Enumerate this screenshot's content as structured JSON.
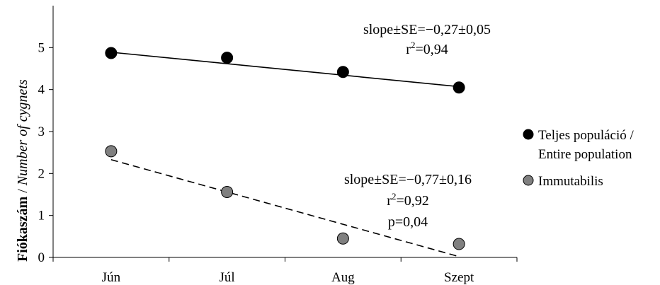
{
  "chart_data": {
    "type": "scatter",
    "categories": [
      "Jún",
      "Júl",
      "Aug",
      "Szept"
    ],
    "ylabel": {
      "bold": "Fiókaszám",
      "separator": " / ",
      "italic": "Number of cygnets"
    },
    "ylim": [
      0,
      6
    ],
    "yticks": [
      "0",
      "1",
      "2",
      "3",
      "4",
      "5"
    ],
    "grid": false,
    "legend_position": "right",
    "series": [
      {
        "name_line1": "Teljes populáció /",
        "name_line2": "Entire population",
        "color": "#000000",
        "values": [
          4.87,
          4.76,
          4.42,
          4.05
        ],
        "trend": {
          "start": 4.89,
          "end": 4.07,
          "style": "solid"
        },
        "annotation": {
          "line1": "slope±SE=−0,27±0,05",
          "line2_base": "r",
          "line2_sup": "2",
          "line2_rest": "=0,94"
        }
      },
      {
        "name": "Immutabilis",
        "color": "#808080",
        "values": [
          2.53,
          1.56,
          0.45,
          0.32
        ],
        "trend": {
          "start": 2.33,
          "end": 0.02,
          "style": "dashed"
        },
        "annotation": {
          "line1": "slope±SE=−0,77±0,16",
          "line2_base": "r",
          "line2_sup": "2",
          "line2_rest": "=0,92",
          "line3": "p=0,04"
        }
      }
    ]
  }
}
